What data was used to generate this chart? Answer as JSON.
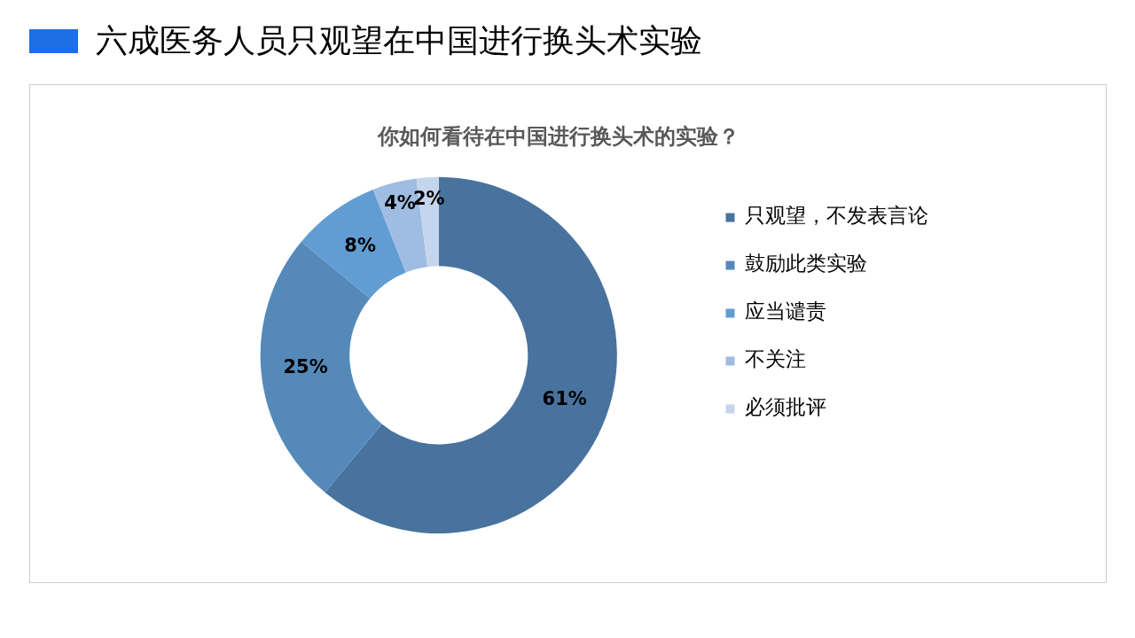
{
  "chart_data": {
    "type": "donut",
    "title": "六成医务人员只观望在中国进行换头术实验",
    "subtitle": "你如何看待在中国进行换头术的实验？",
    "categories": [
      "只观望，不发表言论",
      "鼓励此类实验",
      "应当谴责",
      "不关注",
      "必须批评"
    ],
    "values": [
      61,
      25,
      8,
      4,
      2
    ],
    "colors": [
      "#48739e",
      "#5589ba",
      "#619dd3",
      "#9fbde2",
      "#c5d5eb"
    ],
    "value_labels": [
      "61%",
      "25%",
      "8%",
      "4%",
      "2%"
    ],
    "legend": "right"
  }
}
